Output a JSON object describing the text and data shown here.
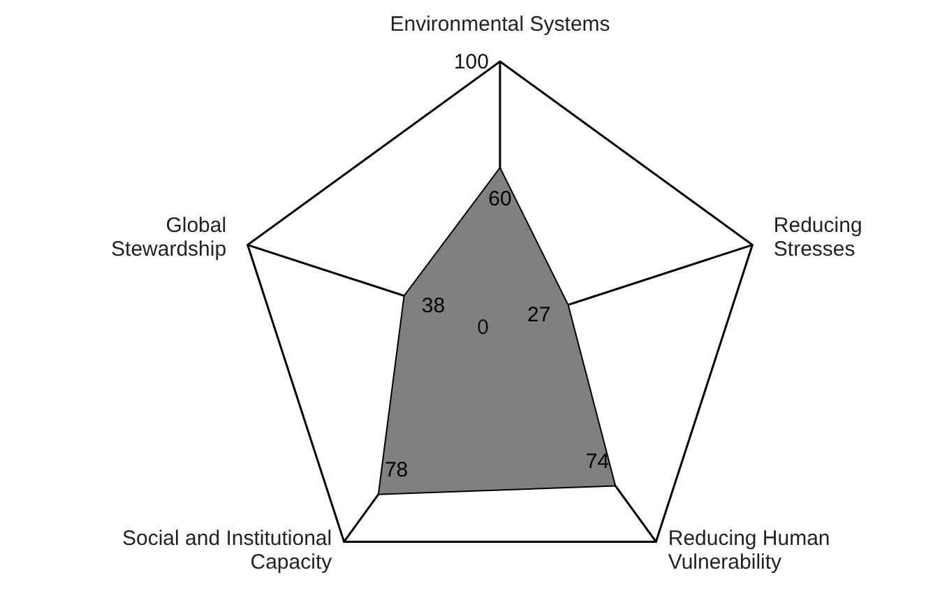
{
  "chart_data": {
    "type": "radar",
    "categories": [
      "Environmental Systems",
      "Reducing Stresses",
      "Reducing Human Vulnerability",
      "Social and Institutional Capacity",
      "Global Stewardship"
    ],
    "series": [
      {
        "color": "#808080",
        "values": [
          60,
          27,
          74,
          78,
          38
        ]
      }
    ],
    "ylim": [
      0,
      100
    ],
    "yticks": [
      0,
      100
    ],
    "grid": true,
    "data_labels": true
  }
}
